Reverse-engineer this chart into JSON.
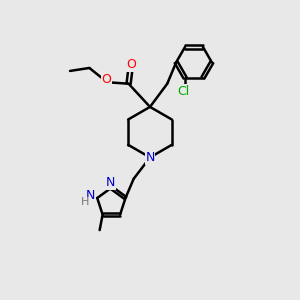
{
  "bg_color": "#e8e8e8",
  "bond_color": "#000000",
  "bond_width": 1.8,
  "atom_colors": {
    "O": "#ff0000",
    "N": "#0000cc",
    "Cl": "#00aa00",
    "H": "#777777",
    "C": "#000000"
  },
  "font_size_atom": 9
}
